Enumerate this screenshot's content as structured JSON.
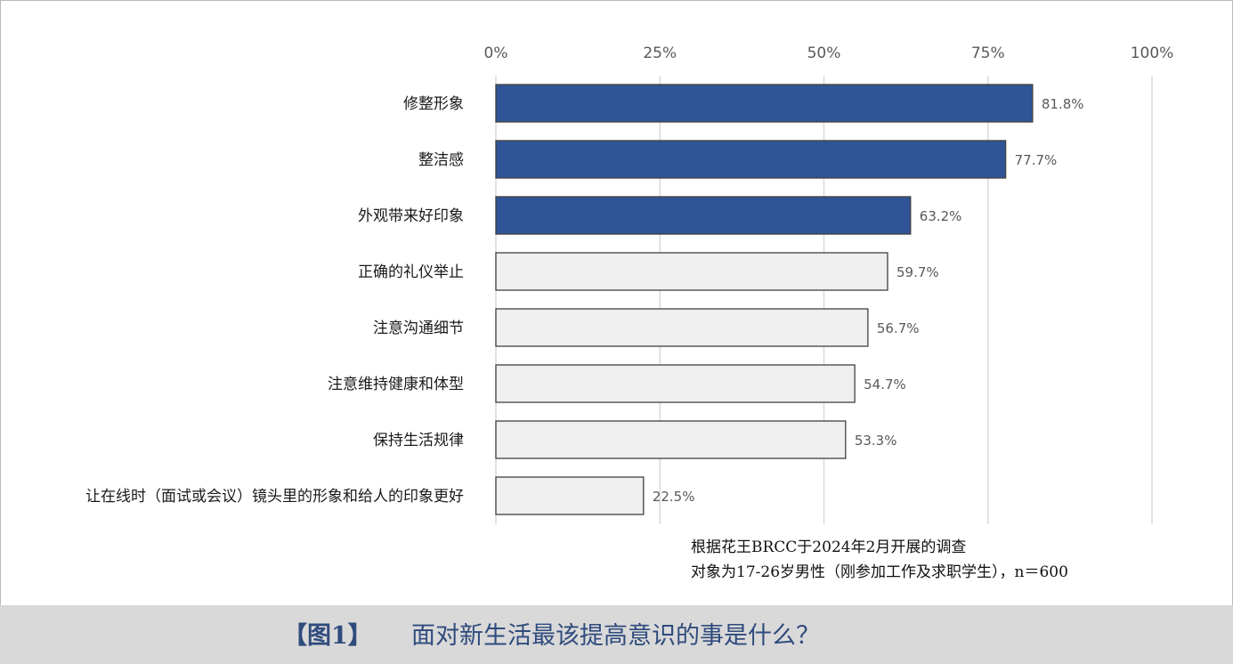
{
  "chart_data": {
    "type": "bar",
    "orientation": "horizontal",
    "categories": [
      "修整形象",
      "整洁感",
      "外观带来好印象",
      "正确的礼仪举止",
      "注意沟通细节",
      "注意维持健康和体型",
      "保持生活规律",
      "让在线时（面试或会议）镜头里的形象和给人的印象更好"
    ],
    "values": [
      81.8,
      77.7,
      63.2,
      59.7,
      56.7,
      54.7,
      53.3,
      22.5
    ],
    "value_labels": [
      "81.8%",
      "77.7%",
      "63.2%",
      "59.7%",
      "56.7%",
      "54.7%",
      "53.3%",
      "22.5%"
    ],
    "highlighted": [
      true,
      true,
      true,
      false,
      false,
      false,
      false,
      false
    ],
    "xlim": [
      0,
      100
    ],
    "xticks": [
      0,
      25,
      50,
      75,
      100
    ],
    "xtick_labels": [
      "0%",
      "25%",
      "50%",
      "75%",
      "100%"
    ],
    "axis_position": "top",
    "grid": true,
    "colors": {
      "highlight": "#2f5597",
      "normal": "#efefef",
      "border": "#404040",
      "grid": "#d9d9d9"
    }
  },
  "source": {
    "line1": "根据花王BRCC于2024年2月开展的调查",
    "line2": "对象为17-26岁男性（刚参加工作及求职学生），n＝600"
  },
  "title_bar": {
    "prefix": "【图1】",
    "title": "面对新生活最该提高意识的事是什么？",
    "background": "#d9d9d9",
    "text_color": "#2f4b7d"
  }
}
